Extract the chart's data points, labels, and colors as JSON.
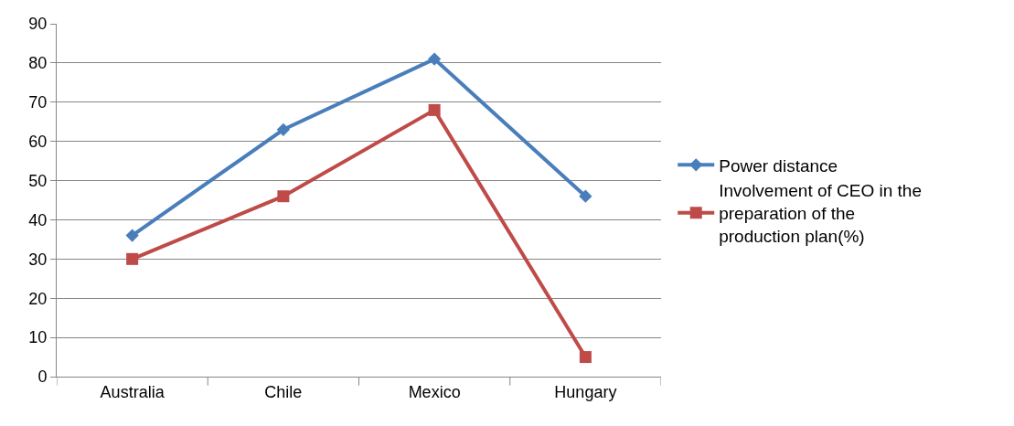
{
  "chart_data": {
    "type": "line",
    "categories": [
      "Australia",
      "Chile",
      "Mexico",
      "Hungary"
    ],
    "series": [
      {
        "name": "Power distance",
        "color": "#4a7ebb",
        "marker": "diamond",
        "values": [
          36,
          63,
          81,
          46
        ]
      },
      {
        "name": "Involvement of CEO in the preparation of the production plan(%)",
        "color": "#be4b48",
        "marker": "square",
        "values": [
          30,
          46,
          68,
          5
        ]
      }
    ],
    "ylim": [
      0,
      90
    ],
    "yticks": [
      0,
      10,
      20,
      30,
      40,
      50,
      60,
      70,
      80,
      90
    ],
    "grid": "y",
    "legend": "right",
    "line_style": "solid"
  }
}
